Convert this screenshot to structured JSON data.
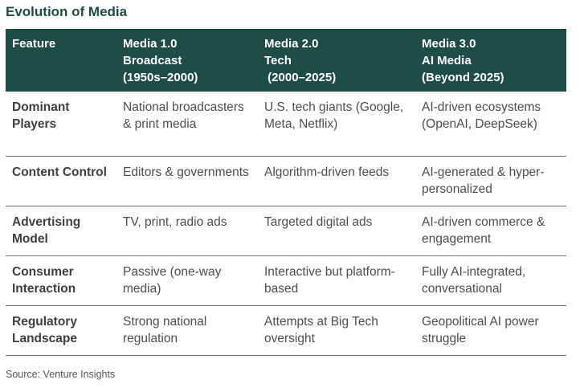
{
  "title": "Evolution of Media",
  "table": {
    "headers": [
      {
        "lines": [
          "Feature"
        ]
      },
      {
        "lines": [
          "Media 1.0",
          "Broadcast",
          "(1950s–2000)"
        ]
      },
      {
        "lines": [
          "Media 2.0",
          "Tech",
          " (2000–2025)"
        ]
      },
      {
        "lines": [
          "Media 3.0",
          "AI Media",
          "(Beyond 2025)"
        ]
      }
    ],
    "rows": [
      {
        "feature": "Dominant Players",
        "media1": "National broadcasters & print media",
        "media2": "U.S. tech giants (Google, Meta, Netflix)",
        "media3": "AI-driven ecosystems (OpenAI, DeepSeek)"
      },
      {
        "feature": "Content Control",
        "media1": "Editors & governments",
        "media2": "Algorithm-driven feeds",
        "media3": "AI-generated & hyper-personalized"
      },
      {
        "feature": "Advertising Model",
        "media1": "TV, print, radio ads",
        "media2": "Targeted digital ads",
        "media3": "AI-driven commerce & engagement"
      },
      {
        "feature": "Consumer Interaction",
        "media1": "Passive (one-way media)",
        "media2": "Interactive but platform-based",
        "media3": "Fully AI-integrated, conversational"
      },
      {
        "feature": "Regulatory Landscape",
        "media1": "Strong national regulation",
        "media2": "Attempts at Big Tech oversight",
        "media3": "Geopolitical AI power struggle"
      }
    ]
  },
  "source": "Source: Venture Insights",
  "colors": {
    "header_bg": "#1d4d45",
    "title": "#1d4d45",
    "rule": "#6d6d6d"
  }
}
